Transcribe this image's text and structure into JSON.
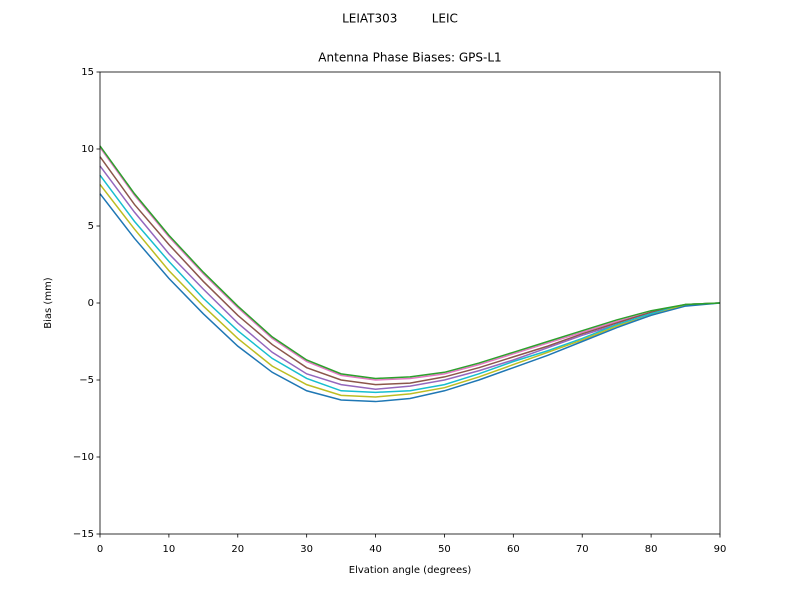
{
  "chart_data": {
    "type": "line",
    "title": "LEIAT303         LEIC",
    "subtitle": "Antenna Phase Biases: GPS-L1",
    "x_label": "Elvation angle (degrees)",
    "y_label": "Bias (mm)",
    "x": [
      0,
      5,
      10,
      15,
      20,
      25,
      30,
      35,
      40,
      45,
      50,
      55,
      60,
      65,
      70,
      75,
      80,
      85,
      90
    ],
    "series": [
      {
        "color": "#e377c2",
        "values": [
          10.1,
          7.0,
          4.3,
          1.9,
          -0.3,
          -2.3,
          -3.8,
          -4.7,
          -5.0,
          -4.9,
          -4.6,
          -4.0,
          -3.3,
          -2.6,
          -1.9,
          -1.2,
          -0.6,
          -0.1,
          0
        ]
      },
      {
        "color": "#8c564b",
        "values": [
          9.5,
          6.4,
          3.8,
          1.4,
          -0.8,
          -2.7,
          -4.2,
          -5.0,
          -5.3,
          -5.2,
          -4.8,
          -4.2,
          -3.5,
          -2.8,
          -2.0,
          -1.3,
          -0.6,
          -0.1,
          0
        ]
      },
      {
        "color": "#9467bd",
        "values": [
          8.9,
          5.9,
          3.2,
          0.9,
          -1.3,
          -3.2,
          -4.6,
          -5.3,
          -5.6,
          -5.4,
          -5.0,
          -4.4,
          -3.7,
          -2.9,
          -2.1,
          -1.4,
          -0.7,
          -0.1,
          0
        ]
      },
      {
        "color": "#17becf",
        "values": [
          8.3,
          5.3,
          2.7,
          0.3,
          -1.8,
          -3.6,
          -4.9,
          -5.7,
          -5.8,
          -5.7,
          -5.3,
          -4.6,
          -3.8,
          -3.1,
          -2.3,
          -1.4,
          -0.7,
          -0.1,
          0
        ]
      },
      {
        "color": "#bcbd22",
        "values": [
          7.7,
          4.8,
          2.1,
          -0.2,
          -2.3,
          -4.1,
          -5.3,
          -6.0,
          -6.1,
          -5.9,
          -5.5,
          -4.8,
          -4.0,
          -3.2,
          -2.4,
          -1.5,
          -0.8,
          -0.1,
          0
        ]
      },
      {
        "color": "#1f77b4",
        "values": [
          7.1,
          4.2,
          1.6,
          -0.7,
          -2.8,
          -4.5,
          -5.7,
          -6.3,
          -6.4,
          -6.2,
          -5.7,
          -5.0,
          -4.2,
          -3.4,
          -2.5,
          -1.6,
          -0.8,
          -0.2,
          0
        ]
      },
      {
        "color": "#2ca02c",
        "values": [
          10.2,
          7.1,
          4.4,
          2.0,
          -0.2,
          -2.2,
          -3.7,
          -4.6,
          -4.9,
          -4.8,
          -4.5,
          -3.9,
          -3.2,
          -2.5,
          -1.8,
          -1.1,
          -0.5,
          -0.1,
          0
        ]
      }
    ],
    "xlim": [
      0,
      90
    ],
    "xticks": [
      0,
      10,
      20,
      30,
      40,
      50,
      60,
      70,
      80,
      90
    ],
    "ylim": [
      -15,
      15
    ],
    "yticks": [
      {
        "value": -15,
        "label": "−15"
      },
      {
        "value": -10,
        "label": "−10"
      },
      {
        "value": -5,
        "label": "−5"
      },
      0,
      5,
      10,
      15
    ]
  }
}
